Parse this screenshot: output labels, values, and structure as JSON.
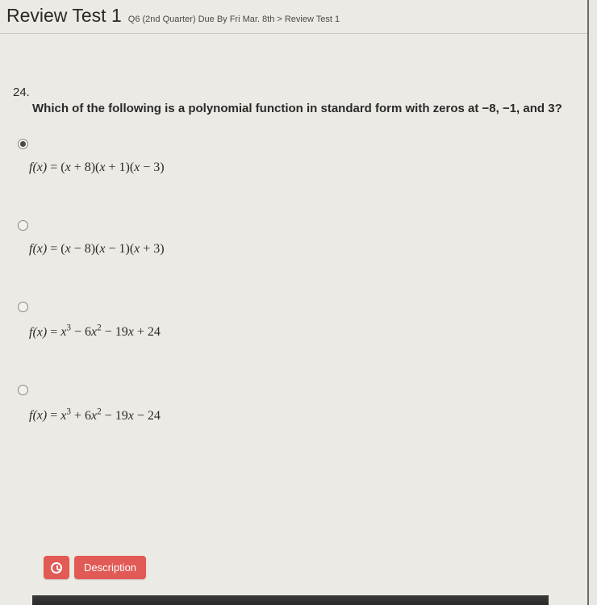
{
  "header": {
    "title": "Review Test 1",
    "breadcrumb": "Q6 (2nd Quarter) Due By Fri Mar. 8th > Review Test 1"
  },
  "question": {
    "number": "24.",
    "prompt": "Which of the following is a polynomial function in standard form with zeros at −8, −1, and 3?",
    "selected_index": 0,
    "options": [
      {
        "fx": "f(x)",
        "eq": "=",
        "expr_html": "(<i>x</i> + 8)(<i>x</i> + 1)(<i>x</i> − 3)"
      },
      {
        "fx": "f(x)",
        "eq": "=",
        "expr_html": "(<i>x</i> − 8)(<i>x</i> − 1)(<i>x</i> + 3)"
      },
      {
        "fx": "f(x)",
        "eq": "=",
        "expr_html": "<i>x</i><sup>3</sup> − 6<i>x</i><sup>2</sup> − 19<i>x</i> + 24"
      },
      {
        "fx": "f(x)",
        "eq": "=",
        "expr_html": "<i>x</i><sup>3</sup> + 6<i>x</i><sup>2</sup> − 19<i>x</i> − 24"
      }
    ]
  },
  "footer": {
    "description_label": "Description"
  },
  "colors": {
    "background": "#eceae4",
    "button": "#e25a55",
    "text": "#2a2a2a"
  }
}
